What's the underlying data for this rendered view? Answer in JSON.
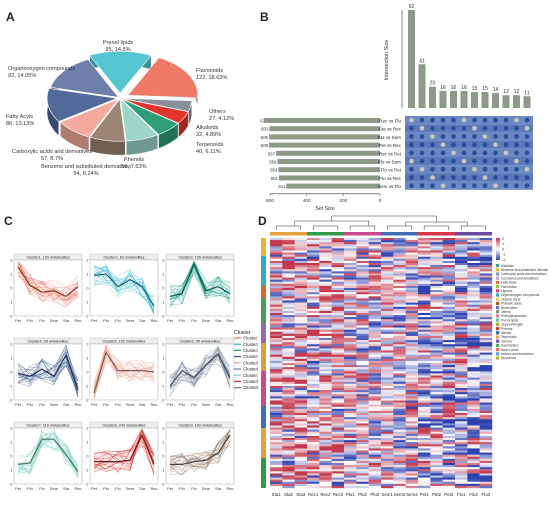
{
  "panels": {
    "a": "A",
    "b": "B",
    "c": "C",
    "d": "D"
  },
  "chart_data": [
    {
      "type": "pie",
      "panel": "A",
      "slices": [
        {
          "label": "Prenol lipids",
          "count": 95,
          "percent": "14.5%",
          "text": "95, 14.5%",
          "color": "#55c6cf"
        },
        {
          "label": "Flavonoids",
          "count": 122,
          "percent": "18.63%",
          "text": "122, 18.63%",
          "color": "#f07a66"
        },
        {
          "label": "Others",
          "count": 27,
          "percent": "4.12%",
          "text": "27, 4.12%",
          "color": "#8a8f9c"
        },
        {
          "label": "Alkaloids",
          "count": 32,
          "percent": "4.89%",
          "text": "32, 4.89%",
          "color": "#e0342c"
        },
        {
          "label": "Terpenoids",
          "count": 40,
          "percent": "6.11%",
          "text": "40, 6.11%",
          "color": "#2e9e79"
        },
        {
          "label": "Phenols",
          "count": 50,
          "percent": "7.63%",
          "text": "50, 7.63%",
          "color": "#9cd6c7"
        },
        {
          "label": "Benzene and substituted derivatives",
          "count": 54,
          "percent": "8.24%",
          "text": "54, 8.24%",
          "color": "#9b8575"
        },
        {
          "label": "Carboxylic acids and derivatives",
          "count": 57,
          "percent": "8.7%",
          "text": "57, 8.7%",
          "color": "#f3a99c"
        },
        {
          "label": "Fatty Acyls",
          "count": 86,
          "percent": "13.13%",
          "text": "86, 13.13%",
          "color": "#516a99"
        },
        {
          "label": "Organooxygen compounds",
          "count": 92,
          "percent": "14.05%",
          "text": "92, 14.05%",
          "color": "#6f7faa"
        }
      ]
    },
    {
      "type": "bar",
      "panel": "B",
      "subtype": "upset",
      "intersection_values": [
        92,
        41,
        20,
        16,
        16,
        16,
        15,
        15,
        14,
        12,
        12,
        11
      ],
      "intersection_ylabel": "Intersection Size",
      "sets": [
        "Rec vs Flu",
        "Sta vs Rec",
        "Sta vs Sem",
        "Pet vs Rec",
        "Rec vs Pet",
        "Flo vs Sem",
        "Flo vs Pet",
        "Flo vs Rec",
        "Sem vs Flo"
      ],
      "set_sizes": [
        635,
        603,
        605,
        605,
        567,
        559,
        554,
        551,
        511
      ],
      "set_xlabel": "Set Size",
      "set_ticks": [
        "600",
        "400",
        "200",
        "0"
      ],
      "set_xlim": [
        600,
        0
      ]
    },
    {
      "type": "line",
      "panel": "C",
      "x": [
        "Pet",
        "Plu",
        "Flo",
        "Sem",
        "Sta",
        "Rec"
      ],
      "ylim": [
        -2,
        2
      ],
      "yticks": [
        "2",
        "1",
        "0",
        "-1",
        "-2"
      ],
      "legend_title": "Cluster",
      "legend": [
        "Cluster1",
        "Cluster2",
        "Cluster3",
        "Cluster4",
        "Cluster5",
        "Cluster6",
        "Cluster7",
        "Cluster8",
        "Cluster9"
      ],
      "series": [
        {
          "title": "Cluster1, 139 metabolites",
          "color": "#ef6a50",
          "values": [
            1.5,
            0.2,
            -0.3,
            -0.2,
            -0.6,
            0.1
          ]
        },
        {
          "title": "Cluster2, 62 metabolites",
          "color": "#34b6cc",
          "values": [
            0.9,
            1.0,
            0.1,
            0.6,
            0.1,
            -1.3
          ]
        },
        {
          "title": "Cluster3, 126 metabolites",
          "color": "#1a9c8a",
          "values": [
            -0.6,
            -0.4,
            1.7,
            -0.2,
            0.1,
            -0.4
          ]
        },
        {
          "title": "Cluster4, 93 metabolites",
          "color": "#3a5d8f",
          "values": [
            -0.1,
            -0.3,
            0.2,
            -0.3,
            1.2,
            -1.3
          ]
        },
        {
          "title": "Cluster5, 152 metabolites",
          "color": "#e9a08c",
          "values": [
            -1.5,
            1.4,
            0.1,
            0.1,
            0.1,
            0.0
          ]
        },
        {
          "title": "Cluster6, 95 metabolites",
          "color": "#6d7d9c",
          "values": [
            -1.0,
            0.1,
            -0.4,
            0.5,
            1.3,
            -0.4
          ]
        },
        {
          "title": "Cluster7, 119 metabolites",
          "color": "#7ecfbe",
          "values": [
            -0.6,
            -0.5,
            1.2,
            1.2,
            0.1,
            -1.1
          ]
        },
        {
          "title": "Cluster8, 243 metabolites",
          "color": "#d92a24",
          "values": [
            -0.4,
            -0.4,
            -0.4,
            -0.3,
            1.5,
            -0.6
          ]
        },
        {
          "title": "Cluster9, 162 metabolites",
          "color": "#8a735e",
          "values": [
            -0.6,
            -0.6,
            -0.4,
            -0.3,
            0.2,
            1.5
          ]
        }
      ]
    },
    {
      "type": "heatmap",
      "panel": "D",
      "columns": [
        "Sta1",
        "Sta2",
        "Sta3",
        "Rec1",
        "Rec2",
        "Rec3",
        "Plu1",
        "Plu2",
        "Plu3",
        "Sem1",
        "Sem2",
        "Sem3",
        "Pet1",
        "Pet2",
        "Pet3",
        "Flo1",
        "Flo2",
        "Flo3"
      ],
      "column_group_colors": [
        "#e6a23c",
        "#2e9b47",
        "#c84b8a",
        "#3e6fb5",
        "#d9364a",
        "#6b4aa0"
      ],
      "scale_ticks": [
        "2",
        "1",
        "0",
        "-1",
        "-2"
      ],
      "scale_colors": [
        "#c2354a",
        "#ffffff",
        "#2f45a8"
      ],
      "legend_items": [
        "Alkaloids",
        "Benzene and substituted derivatives",
        "Carboxylic acids and derivatives",
        "Coumarins and derivatives",
        "Fatty Acyls",
        "Flavonoids",
        "Lignans",
        "Organooxygen compounds",
        "Organic acids",
        "Phenolic acids",
        "Nucleotides",
        "Others",
        "Phenylpropanoids",
        "Prenol lipids",
        "Organonitrogen",
        "Phenols",
        "Sterols",
        "Terpenoids",
        "Tannins",
        "Saccharides",
        "Amino acids",
        "Indoles and derivatives",
        "Quinolines"
      ],
      "legend_colors": [
        "#3b9c8f",
        "#e6b83b",
        "#7d9bc4",
        "#c9a0d0",
        "#e0742c",
        "#96c33a",
        "#d94b7f",
        "#35a2c7",
        "#f1c95a",
        "#a95b2f",
        "#5a7dbf",
        "#8a8a8a",
        "#e07da4",
        "#6cbf9a",
        "#b8a43a",
        "#c43f3f",
        "#2f6e9a",
        "#e89d5c",
        "#7a4ea3",
        "#4fae5b",
        "#d77c3d",
        "#5c9ed6",
        "#b6b63a"
      ],
      "row_group_colors": [
        "#e8b33a",
        "#3aa8c8",
        "#d9682e",
        "#4a9c5a",
        "#8f6bb5",
        "#d4a43a",
        "#c84b8a",
        "#3e6fb5",
        "#e6a23c",
        "#2e9b47"
      ]
    }
  ]
}
